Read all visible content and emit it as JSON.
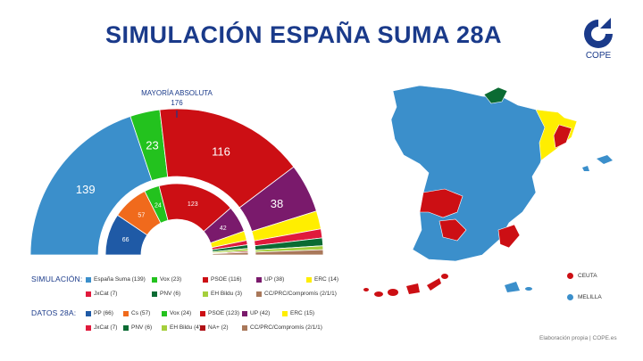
{
  "title": "SIMULACIÓN ESPAÑA SUMA 28A",
  "logo": {
    "text": "COPE",
    "icon": "cope-logo-icon"
  },
  "majority": {
    "label": "MAYORÍA ABSOLUTA",
    "value": "176"
  },
  "chart_data": [
    {
      "type": "pie",
      "subtype": "parliament-hemicycle",
      "name": "SIMULACIÓN:",
      "total": 350,
      "series": [
        {
          "label": "España Suma (139)",
          "value": 139,
          "color": "#3b8fcb"
        },
        {
          "label": "Vox (23)",
          "value": 23,
          "color": "#23c21e"
        },
        {
          "label": "PSOE (116)",
          "value": 116,
          "color": "#cc0f14"
        },
        {
          "label": "UP (38)",
          "value": 38,
          "color": "#7a1a6c"
        },
        {
          "label": "ERC (14)",
          "value": 14,
          "color": "#ffee00"
        },
        {
          "label": "JxCat (7)",
          "value": 7,
          "color": "#e01a3c"
        },
        {
          "label": "PNV (6)",
          "value": 6,
          "color": "#0b6b33"
        },
        {
          "label": "EH Bildu (3)",
          "value": 3,
          "color": "#a5cf3c"
        },
        {
          "label": "CC/PRC/Compromís (2/1/1)",
          "value": 4,
          "color": "#a9785a"
        }
      ],
      "data_labels": [
        "139",
        "23",
        "116",
        "38",
        "",
        "",
        "",
        "",
        ""
      ]
    },
    {
      "type": "pie",
      "subtype": "parliament-hemicycle",
      "name": "DATOS 28A:",
      "total": 350,
      "series": [
        {
          "label": "PP (66)",
          "value": 66,
          "color": "#1f5aa6"
        },
        {
          "label": "Cs (57)",
          "value": 57,
          "color": "#f06a1c"
        },
        {
          "label": "Vox (24)",
          "value": 24,
          "color": "#23c21e"
        },
        {
          "label": "PSOE (123)",
          "value": 123,
          "color": "#cc0f14"
        },
        {
          "label": "UP (42)",
          "value": 42,
          "color": "#7a1a6c"
        },
        {
          "label": "ERC (15)",
          "value": 15,
          "color": "#ffee00"
        },
        {
          "label": "JxCat (7)",
          "value": 7,
          "color": "#e01a3c"
        },
        {
          "label": "PNV (6)",
          "value": 6,
          "color": "#0b6b33"
        },
        {
          "label": "EH Bildu (4)",
          "value": 4,
          "color": "#a5cf3c"
        },
        {
          "label": "NA+ (2)",
          "value": 2,
          "color": "#b01116"
        },
        {
          "label": "CC/PRC/Compromís (2/1/1)",
          "value": 4,
          "color": "#a9785a"
        }
      ],
      "data_labels": [
        "66",
        "57",
        "24",
        "123",
        "42",
        "",
        "",
        "",
        "",
        "",
        ""
      ]
    }
  ],
  "map": {
    "colors": {
      "espana_suma": "#3b8fcb",
      "psoe": "#cc0f14",
      "erc": "#ffee00",
      "pnv": "#0b6b33"
    },
    "legend": [
      {
        "label": "CEUTA",
        "color": "#cc0f14"
      },
      {
        "label": "MELILLA",
        "color": "#3b8fcb"
      }
    ]
  },
  "source": "Elaboración propia | COPE.es"
}
